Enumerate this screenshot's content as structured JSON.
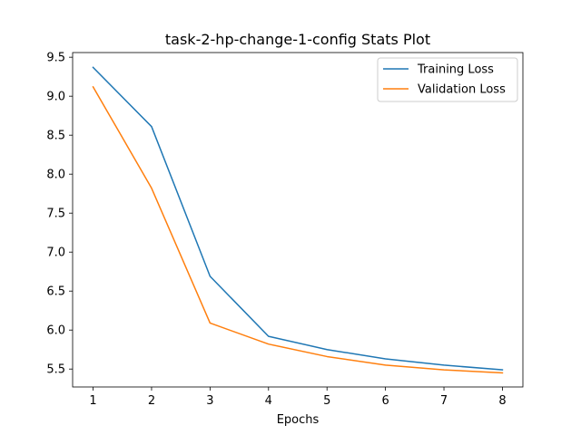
{
  "chart_data": {
    "type": "line",
    "title": "task-2-hp-change-1-config Stats Plot",
    "xlabel": "Epochs",
    "ylabel": "",
    "x": [
      1,
      2,
      3,
      4,
      5,
      6,
      7,
      8
    ],
    "xlim": [
      0.65,
      8.35
    ],
    "ylim": [
      5.27,
      9.56
    ],
    "xticks": [
      1,
      2,
      3,
      4,
      5,
      6,
      7,
      8
    ],
    "yticks": [
      5.5,
      6.0,
      6.5,
      7.0,
      7.5,
      8.0,
      8.5,
      9.0,
      9.5
    ],
    "ytick_labels": [
      "5.5",
      "6.0",
      "6.5",
      "7.0",
      "7.5",
      "8.0",
      "8.5",
      "9.0",
      "9.5"
    ],
    "grid": false,
    "legend_position": "top-right",
    "series": [
      {
        "name": "Training Loss",
        "color": "#1f77b4",
        "values": [
          9.37,
          8.61,
          6.69,
          5.92,
          5.75,
          5.63,
          5.55,
          5.49
        ]
      },
      {
        "name": "Validation Loss",
        "color": "#ff7f0e",
        "values": [
          9.12,
          7.82,
          6.09,
          5.82,
          5.66,
          5.55,
          5.49,
          5.45
        ]
      }
    ]
  }
}
